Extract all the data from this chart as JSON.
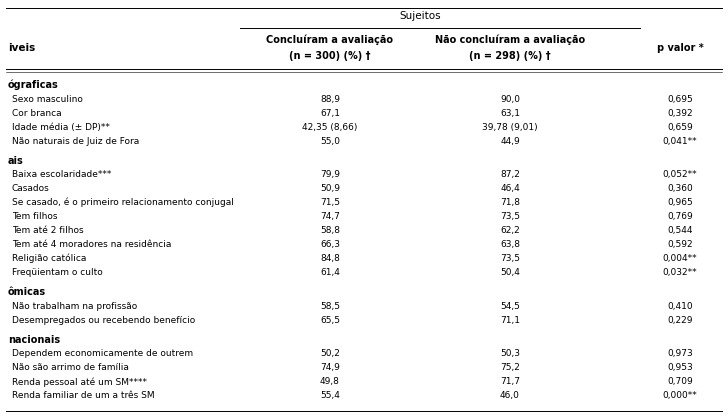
{
  "title": "Sujeitos",
  "col_header_1": "Concluíram a avaliação",
  "col_header_1b": "(n = 300) (%) †",
  "col_header_2": "Não concluíram a avaliação",
  "col_header_2b": "(n = 298) (%) †",
  "col_header_3": "p valor *",
  "row_header_left": "iveis",
  "sections": [
    {
      "section_label": "ógraficas",
      "rows": [
        {
          "label": "Sexo masculino",
          "v1": "88,9",
          "v2": "90,0",
          "v3": "0,695"
        },
        {
          "label": "Cor branca",
          "v1": "67,1",
          "v2": "63,1",
          "v3": "0,392"
        },
        {
          "label": "Idade média (± DP)**",
          "v1": "42,35 (8,66)",
          "v2": "39,78 (9,01)",
          "v3": "0,659"
        },
        {
          "label": "Não naturais de Juiz de Fora",
          "v1": "55,0",
          "v2": "44,9",
          "v3": "0,041**"
        }
      ]
    },
    {
      "section_label": "ais",
      "rows": [
        {
          "label": "Baixa escolaridade***",
          "v1": "79,9",
          "v2": "87,2",
          "v3": "0,052**"
        },
        {
          "label": "Casados",
          "v1": "50,9",
          "v2": "46,4",
          "v3": "0,360"
        },
        {
          "label": "Se casado, é o primeiro relacionamento conjugal",
          "v1": "71,5",
          "v2": "71,8",
          "v3": "0,965"
        },
        {
          "label": "Tem filhos",
          "v1": "74,7",
          "v2": "73,5",
          "v3": "0,769"
        },
        {
          "label": "Tem até 2 filhos",
          "v1": "58,8",
          "v2": "62,2",
          "v3": "0,544"
        },
        {
          "label": "Tem até 4 moradores na residência",
          "v1": "66,3",
          "v2": "63,8",
          "v3": "0,592"
        },
        {
          "label": "Religião católica",
          "v1": "84,8",
          "v2": "73,5",
          "v3": "0,004**"
        },
        {
          "label": "Freqüientam o culto",
          "v1": "61,4",
          "v2": "50,4",
          "v3": "0,032**"
        }
      ]
    },
    {
      "section_label": "ômicas",
      "rows": [
        {
          "label": "Não trabalham na profissão",
          "v1": "58,5",
          "v2": "54,5",
          "v3": "0,410"
        },
        {
          "label": "Desempregados ou recebendo benefício",
          "v1": "65,5",
          "v2": "71,1",
          "v3": "0,229"
        }
      ]
    },
    {
      "section_label": "nacionais",
      "rows": [
        {
          "label": "Dependem economicamente de outrem",
          "v1": "50,2",
          "v2": "50,3",
          "v3": "0,973"
        },
        {
          "label": "Não são arrimo de família",
          "v1": "74,9",
          "v2": "75,2",
          "v3": "0,953"
        },
        {
          "label": "Renda pessoal até um SM****",
          "v1": "49,8",
          "v2": "71,7",
          "v3": "0,709"
        },
        {
          "label": "Renda familiar de um a três SM",
          "v1": "55,4",
          "v2": "46,0",
          "v3": "0,000**"
        }
      ]
    }
  ],
  "bg_color": "#ffffff",
  "text_color": "#000000",
  "font_size_data": 6.5,
  "font_size_header": 7.5,
  "font_size_section": 7.0,
  "font_size_title": 7.5
}
